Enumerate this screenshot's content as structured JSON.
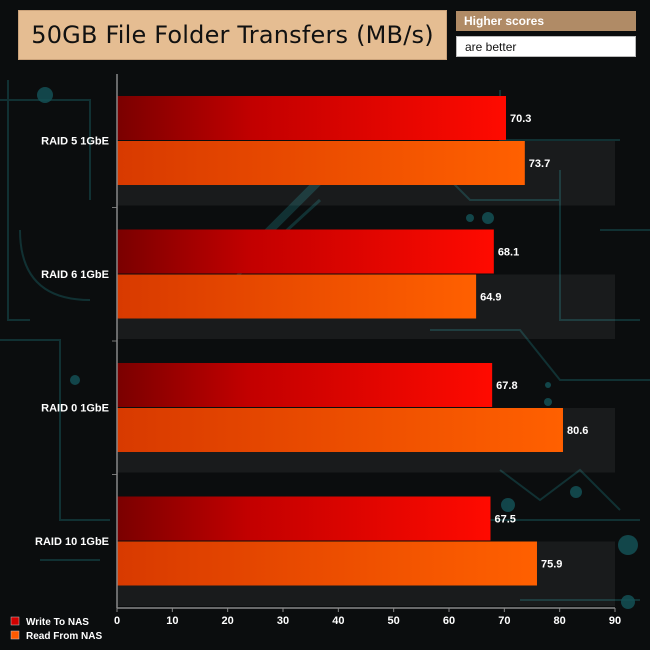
{
  "chart_data": {
    "type": "bar",
    "orientation": "horizontal",
    "title": "50GB File Folder Transfers (MB/s)",
    "note": [
      "Higher scores",
      "are better"
    ],
    "categories": [
      "RAID 5 1GbE",
      "RAID 6 1GbE",
      "RAID 0 1GbE",
      "RAID 10 1GbE"
    ],
    "series": [
      {
        "name": "Write To NAS",
        "values": [
          70.3,
          68.1,
          67.8,
          67.5
        ],
        "color": "#e60000"
      },
      {
        "name": "Read From NAS",
        "values": [
          73.7,
          64.9,
          80.6,
          75.9
        ],
        "color": "#ff5500"
      }
    ],
    "xlim": [
      0,
      90
    ],
    "xticks": [
      0,
      10,
      20,
      30,
      40,
      50,
      60,
      70,
      80,
      90
    ],
    "legend": "bottom-left",
    "grid": false
  }
}
